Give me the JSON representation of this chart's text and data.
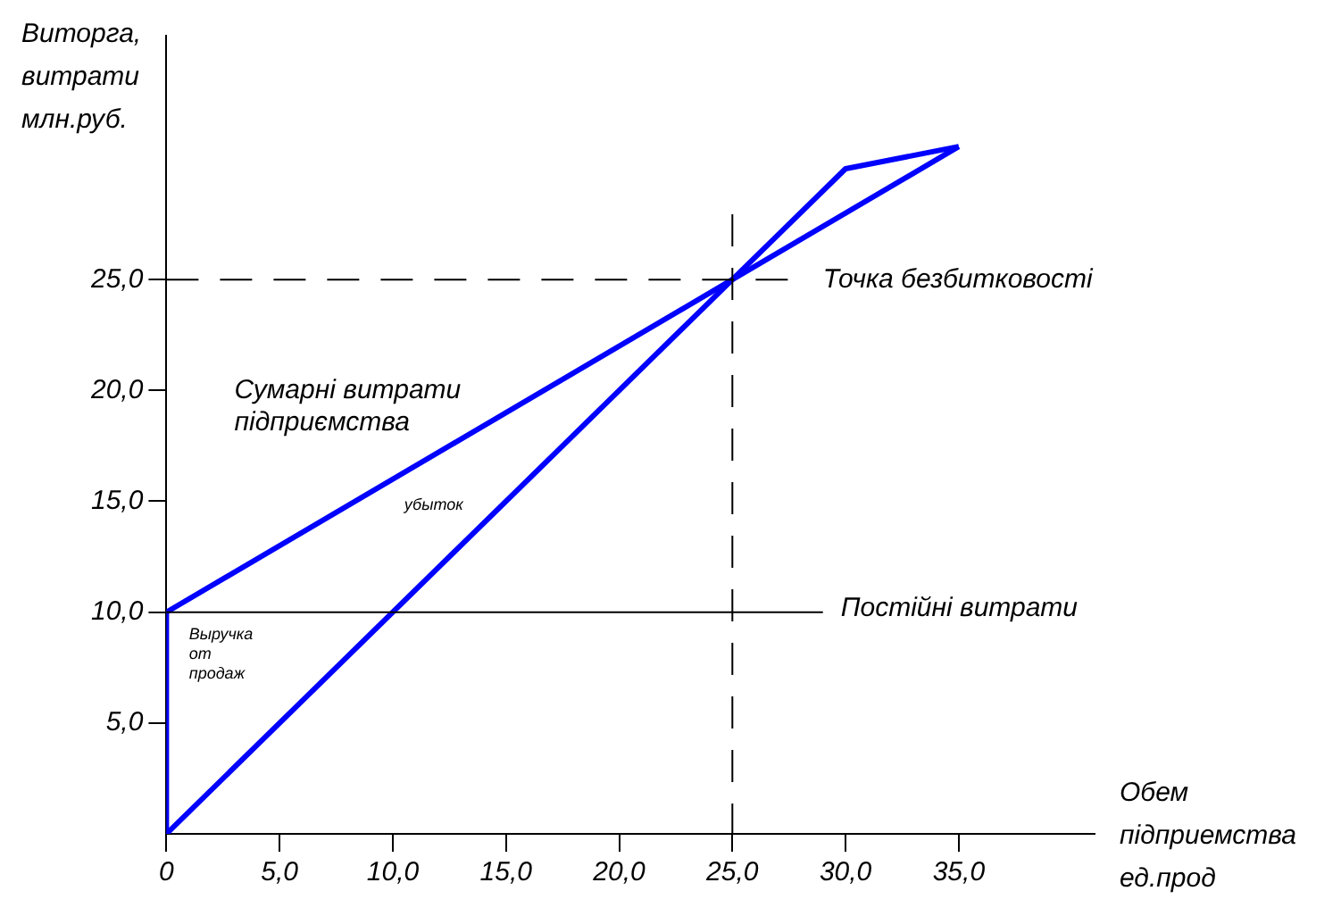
{
  "chart_data": {
    "type": "line",
    "xlabel": "Обем підприемства ед.прод",
    "ylabel": "Виторга, витрати млн.руб.",
    "x": [
      0,
      0,
      25,
      35
    ],
    "series": [
      {
        "color": "#0000ff",
        "values": [
          0,
          10,
          25,
          31
        ]
      },
      {
        "color": "#0000ff",
        "x": [
          0,
          25,
          30,
          35
        ],
        "values": [
          0,
          25,
          30,
          31
        ]
      }
    ],
    "xlim": [
      0,
      41
    ],
    "ylim": [
      0,
      36
    ],
    "xticks": [
      {
        "value": 0,
        "label": "0"
      },
      {
        "value": 5,
        "label": "5,0"
      },
      {
        "value": 10,
        "label": "10,0"
      },
      {
        "value": 15,
        "label": "15,0"
      },
      {
        "value": 20,
        "label": "20,0"
      },
      {
        "value": 25,
        "label": "25,0"
      },
      {
        "value": 30,
        "label": "30,0"
      },
      {
        "value": 35,
        "label": "35,0"
      }
    ],
    "yticks": [
      {
        "value": 5,
        "label": "5,0"
      },
      {
        "value": 10,
        "label": "10,0"
      },
      {
        "value": 15,
        "label": "15,0"
      },
      {
        "value": 20,
        "label": "20,0"
      },
      {
        "value": 25,
        "label": "25,0"
      }
    ],
    "ref_lines": [
      {
        "axis": "y",
        "value": 10,
        "label": "Постійні витрати",
        "color": "#000000",
        "line_style": "solid"
      },
      {
        "axis": "y",
        "value": 25,
        "color": "#000000",
        "line_style": "dashed"
      },
      {
        "axis": "x",
        "value": 25,
        "color": "#000000",
        "line_style": "dashed"
      }
    ],
    "annotations": [
      "Сумарні витрати підприємства",
      "Точка безбитковості",
      "убыток",
      "Выручка от продаж"
    ],
    "grid": false,
    "legend": false,
    "marker": "none",
    "line_style": "solid"
  }
}
